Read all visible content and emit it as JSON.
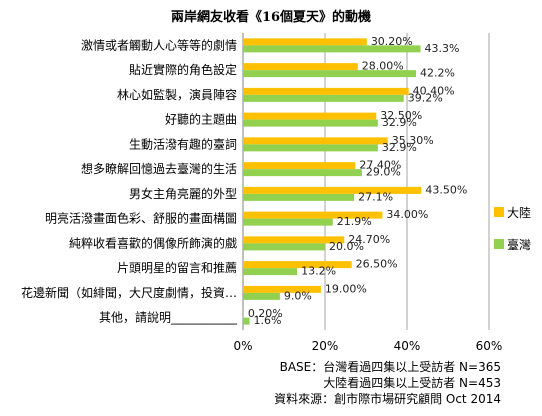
{
  "title": "兩岸網友收看《16個夏天》的動機",
  "legend": [
    {
      "name": "大陸",
      "color": "#ffc000"
    },
    {
      "name": "臺灣",
      "color": "#92d050"
    }
  ],
  "notes": [
    "BASE：台灣看過四集以上受訪者  N=365",
    "大陸看過四集以上受訪者  N=453",
    "資料來源：創市際市場研究顧問  Oct 2014"
  ],
  "chart_data": {
    "type": "bar",
    "orientation": "horizontal",
    "title": "兩岸網友收看《16個夏天》的動機",
    "xlim": [
      0,
      60
    ],
    "ticks": [
      "0%",
      "20%",
      "40%",
      "60%"
    ],
    "tick_values": [
      0,
      20,
      40,
      60
    ],
    "grid": true,
    "legend_position": "right",
    "categories": [
      "激情或者觸動人心等等的劇情",
      "貼近實際的角色設定",
      "林心如監製，演員陣容",
      "好聽的主題曲",
      "生動活潑有趣的臺詞",
      "想多瞭解回憶過去臺灣的生活",
      "男女主角亮麗的外型",
      "明亮活潑畫面色彩、舒服的畫面構圖",
      "純粹收看喜歡的偶像所飾演的戲",
      "片頭明星的留言和推薦",
      "花邊新聞（如緋聞，大尺度劇情，投資…",
      "其他，請說明___________"
    ],
    "series": [
      {
        "name": "大陸",
        "values": [
          30.2,
          28.0,
          40.4,
          32.5,
          35.3,
          27.4,
          43.5,
          34.0,
          24.7,
          26.5,
          19.0,
          0.2
        ],
        "labels": [
          "30.20%",
          "28.00%",
          "40.40%",
          "32.50%",
          "35.30%",
          "27.40%",
          "43.50%",
          "34.00%",
          "24.70%",
          "26.50%",
          "19.00%",
          "0.20%"
        ]
      },
      {
        "name": "臺灣",
        "values": [
          43.3,
          42.2,
          39.2,
          32.9,
          32.9,
          29.0,
          27.1,
          21.9,
          20.0,
          13.2,
          9.0,
          1.6
        ],
        "labels": [
          "43.3%",
          "42.2%",
          "39.2%",
          "32.9%",
          "32.9%",
          "29.0%",
          "27.1%",
          "21.9%",
          "20.0%",
          "13.2%",
          "9.0%",
          "1.6%"
        ]
      }
    ]
  }
}
